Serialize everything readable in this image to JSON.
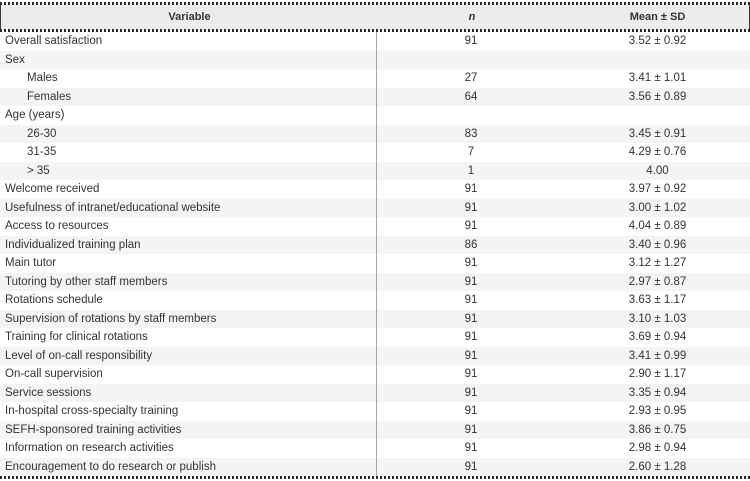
{
  "colors": {
    "text": "#333333",
    "header_bg": "#ececec",
    "row_alt_bg": "#f4f4f4",
    "divider": "#a6a6a6",
    "border_dots": "#2a2a2a"
  },
  "chart_data": {
    "type": "table",
    "columns": [
      "Variable",
      "n",
      "Mean ± SD"
    ],
    "rows": [
      {
        "variable": "Overall satisfaction",
        "indent": false,
        "n": "91",
        "mean_sd": "3.52 ± 0.92"
      },
      {
        "variable": "Sex",
        "indent": false,
        "n": "",
        "mean_sd": ""
      },
      {
        "variable": "Males",
        "indent": true,
        "n": "27",
        "mean_sd": "3.41 ± 1.01"
      },
      {
        "variable": "Females",
        "indent": true,
        "n": "64",
        "mean_sd": "3.56 ± 0.89"
      },
      {
        "variable": "Age (years)",
        "indent": false,
        "n": "",
        "mean_sd": ""
      },
      {
        "variable": "26-30",
        "indent": true,
        "n": "83",
        "mean_sd": "3.45 ± 0.91"
      },
      {
        "variable": "31-35",
        "indent": true,
        "n": "7",
        "mean_sd": "4.29 ± 0.76"
      },
      {
        "variable": "> 35",
        "indent": true,
        "n": "1",
        "mean_sd": "4.00"
      },
      {
        "variable": "Welcome received",
        "indent": false,
        "n": "91",
        "mean_sd": "3.97 ± 0.92"
      },
      {
        "variable": "Usefulness of intranet/educational website",
        "indent": false,
        "n": "91",
        "mean_sd": "3.00 ± 1.02"
      },
      {
        "variable": "Access to resources",
        "indent": false,
        "n": "91",
        "mean_sd": "4.04 ± 0.89"
      },
      {
        "variable": "Individualized training plan",
        "indent": false,
        "n": "86",
        "mean_sd": "3.40 ± 0.96"
      },
      {
        "variable": "Main tutor",
        "indent": false,
        "n": "91",
        "mean_sd": "3.12 ± 1.27"
      },
      {
        "variable": "Tutoring by other staff members",
        "indent": false,
        "n": "91",
        "mean_sd": "2.97 ± 0.87"
      },
      {
        "variable": "Rotations schedule",
        "indent": false,
        "n": "91",
        "mean_sd": "3.63 ± 1.17"
      },
      {
        "variable": "Supervision of rotations by staff members",
        "indent": false,
        "n": "91",
        "mean_sd": "3.10 ± 1.03"
      },
      {
        "variable": "Training for clinical rotations",
        "indent": false,
        "n": "91",
        "mean_sd": "3.69 ± 0.94"
      },
      {
        "variable": "Level of on-call responsibility",
        "indent": false,
        "n": "91",
        "mean_sd": "3.41 ± 0.99"
      },
      {
        "variable": "On-call supervision",
        "indent": false,
        "n": "91",
        "mean_sd": "2.90 ± 1.17"
      },
      {
        "variable": "Service sessions",
        "indent": false,
        "n": "91",
        "mean_sd": "3.35 ± 0.94"
      },
      {
        "variable": "In-hospital cross-specialty training",
        "indent": false,
        "n": "91",
        "mean_sd": "2.93 ± 0.95"
      },
      {
        "variable": "SEFH-sponsored training activities",
        "indent": false,
        "n": "91",
        "mean_sd": "3.86 ± 0.75"
      },
      {
        "variable": "Information on research activities",
        "indent": false,
        "n": "91",
        "mean_sd": "2.98 ± 0.94"
      },
      {
        "variable": "Encouragement to do research or publish",
        "indent": false,
        "n": "91",
        "mean_sd": "2.60 ± 1.28"
      }
    ]
  },
  "header": {
    "variable_label": "Variable",
    "n_label": "n",
    "mean_sd_label": "Mean ± SD"
  }
}
